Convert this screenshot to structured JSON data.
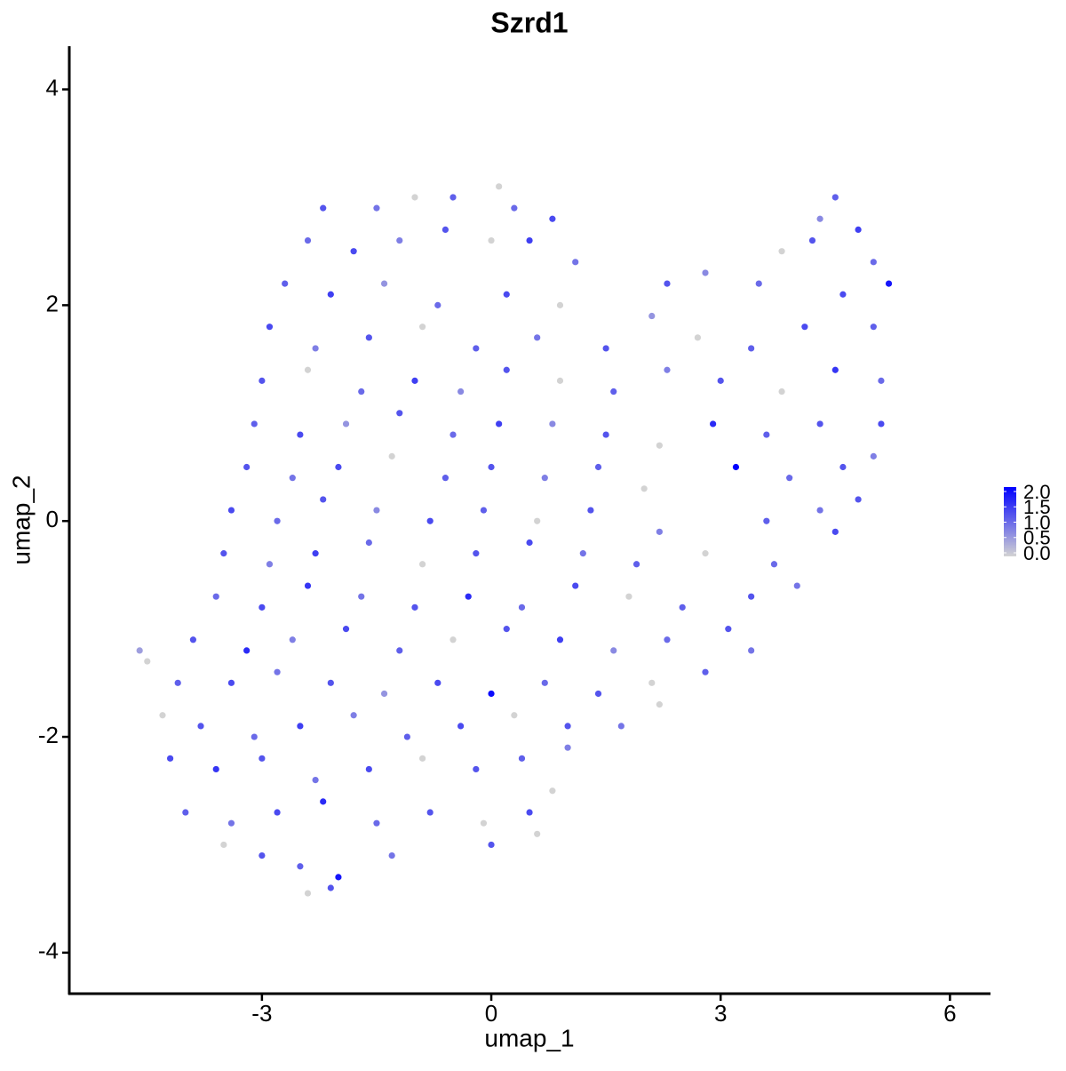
{
  "chart_data": {
    "type": "scatter",
    "title": "Szrd1",
    "x_label": "umap_1",
    "y_label": "umap_2",
    "xlim": [
      -5.52,
      6.53
    ],
    "ylim": [
      -4.38,
      4.4
    ],
    "xticks": [
      -3,
      0,
      3,
      6
    ],
    "yticks": [
      -4,
      -2,
      0,
      2,
      4
    ],
    "color_low": "#d3d3d3",
    "color_high": "#0000ff",
    "color_lim": [
      0,
      2
    ],
    "color_ticks": [
      {
        "value": 0,
        "label": "0.0"
      },
      0.5,
      {
        "value": 1,
        "label": "1.0"
      },
      1.5,
      {
        "value": 2,
        "label": "2.0"
      }
    ],
    "x": [
      -2.2,
      -1.5,
      -1.0,
      -0.5,
      0.1,
      0.3,
      0.8,
      4.5,
      4.8,
      4.3,
      -2.4,
      -1.8,
      -1.2,
      -0.6,
      0,
      0.5,
      1.1,
      3.8,
      4.2,
      5.0,
      -2.7,
      -2.1,
      -1.4,
      -0.7,
      0.2,
      0.9,
      2.3,
      2.8,
      3.5,
      4.6,
      5.2,
      -2.9,
      -2.3,
      -1.6,
      -0.9,
      -0.2,
      0.6,
      1.5,
      2.1,
      2.7,
      3.4,
      4.1,
      5.0,
      -3.0,
      -2.4,
      -1.7,
      -1.0,
      -0.4,
      0.2,
      0.9,
      1.6,
      2.3,
      3.0,
      3.8,
      4.5,
      5.1,
      -3.1,
      -2.5,
      -1.9,
      -1.2,
      -0.5,
      0.1,
      0.8,
      1.5,
      2.2,
      2.9,
      3.6,
      4.3,
      5.1,
      -3.2,
      -2.6,
      -2.0,
      -1.3,
      -0.6,
      0,
      0.7,
      1.4,
      2.0,
      3.2,
      3.9,
      4.6,
      5.0,
      -3.4,
      -2.8,
      -2.2,
      -1.5,
      -0.8,
      -0.1,
      0.6,
      1.3,
      2.2,
      3.6,
      4.3,
      4.8,
      -3.5,
      -2.9,
      -2.3,
      -1.6,
      -0.9,
      -0.2,
      0.5,
      1.2,
      1.9,
      2.8,
      3.7,
      4.5,
      -3.6,
      -3.0,
      -2.4,
      -1.7,
      -1.0,
      -0.3,
      0.4,
      1.1,
      1.8,
      2.5,
      3.4,
      4.0,
      -3.9,
      -3.2,
      -2.6,
      -1.9,
      -1.2,
      -0.5,
      0.2,
      0.9,
      1.6,
      2.3,
      3.1,
      3.4,
      -4.5,
      -4.1,
      -3.4,
      -2.8,
      -2.1,
      -1.4,
      -0.7,
      0,
      0.7,
      1.4,
      2.1,
      2.8,
      -4.3,
      -3.8,
      -3.1,
      -2.5,
      -1.8,
      -1.1,
      -0.4,
      0.3,
      1.0,
      1.7,
      2.2,
      -4.2,
      -3.6,
      -3.0,
      -2.3,
      -1.6,
      -0.9,
      -0.2,
      0.4,
      1.0,
      -4.0,
      -3.4,
      -2.8,
      -2.2,
      -1.5,
      -0.8,
      -0.1,
      0.5,
      0.8,
      -3.5,
      -3.0,
      -2.5,
      -2.0,
      -1.3,
      0,
      0.6,
      -2.4,
      -2.1,
      -4.6
    ],
    "y": [
      2.9,
      2.9,
      3.0,
      3.0,
      3.1,
      2.9,
      2.8,
      3.0,
      2.7,
      2.8,
      2.6,
      2.5,
      2.6,
      2.7,
      2.6,
      2.6,
      2.4,
      2.5,
      2.6,
      2.4,
      2.2,
      2.1,
      2.2,
      2.0,
      2.1,
      2.0,
      2.2,
      2.3,
      2.2,
      2.1,
      2.2,
      1.8,
      1.6,
      1.7,
      1.8,
      1.6,
      1.7,
      1.6,
      1.9,
      1.7,
      1.6,
      1.8,
      1.8,
      1.3,
      1.4,
      1.2,
      1.3,
      1.2,
      1.4,
      1.3,
      1.2,
      1.4,
      1.3,
      1.2,
      1.4,
      1.3,
      0.9,
      0.8,
      0.9,
      1.0,
      0.8,
      0.9,
      0.9,
      0.8,
      0.7,
      0.9,
      0.8,
      0.9,
      0.9,
      0.5,
      0.4,
      0.5,
      0.6,
      0.4,
      0.5,
      0.4,
      0.5,
      0.3,
      0.5,
      0.4,
      0.5,
      0.6,
      0.1,
      0,
      0.2,
      0.1,
      0,
      0.1,
      0,
      0.1,
      -0.1,
      0,
      0.1,
      0.2,
      -0.3,
      -0.4,
      -0.3,
      -0.2,
      -0.4,
      -0.3,
      -0.2,
      -0.3,
      -0.4,
      -0.3,
      -0.4,
      -0.1,
      -0.7,
      -0.8,
      -0.6,
      -0.7,
      -0.8,
      -0.7,
      -0.8,
      -0.6,
      -0.7,
      -0.8,
      -0.7,
      -0.6,
      -1.1,
      -1.2,
      -1.1,
      -1.0,
      -1.2,
      -1.1,
      -1.0,
      -1.1,
      -1.2,
      -1.1,
      -1.0,
      -1.2,
      -1.3,
      -1.5,
      -1.5,
      -1.4,
      -1.5,
      -1.6,
      -1.5,
      -1.6,
      -1.5,
      -1.6,
      -1.5,
      -1.4,
      -1.8,
      -1.9,
      -2.0,
      -1.9,
      -1.8,
      -2.0,
      -1.9,
      -1.8,
      -1.9,
      -1.9,
      -1.7,
      -2.2,
      -2.3,
      -2.2,
      -2.4,
      -2.3,
      -2.2,
      -2.3,
      -2.2,
      -2.1,
      -2.7,
      -2.8,
      -2.7,
      -2.6,
      -2.8,
      -2.7,
      -2.8,
      -2.7,
      -2.5,
      -3.0,
      -3.1,
      -3.2,
      -3.3,
      -3.1,
      -3.0,
      -2.9,
      -3.45,
      -3.4,
      -1.2
    ],
    "expression": [
      1.2,
      0.9,
      0,
      1.1,
      0,
      1.0,
      1.3,
      1.1,
      1.4,
      0.7,
      1.0,
      1.3,
      0.8,
      1.2,
      0,
      1.4,
      0.9,
      0,
      1.2,
      1.0,
      1.1,
      1.4,
      0.6,
      1.0,
      1.3,
      0,
      1.2,
      0.7,
      1.0,
      1.3,
      1.8,
      1.3,
      0.8,
      1.2,
      0,
      1.1,
      0.9,
      1.2,
      0.6,
      0,
      1.1,
      1.3,
      1.1,
      1.2,
      0,
      1.0,
      1.4,
      0.7,
      1.2,
      0,
      1.1,
      0.8,
      1.2,
      0,
      1.5,
      1.0,
      1.1,
      1.3,
      0.6,
      1.2,
      1.0,
      1.4,
      0.7,
      1.2,
      0,
      1.6,
      1.1,
      1.2,
      1.3,
      1.2,
      0.9,
      1.3,
      0,
      1.1,
      1.2,
      0.8,
      1.1,
      0,
      2.0,
      1.0,
      1.2,
      0.8,
      1.3,
      1.0,
      1.2,
      0.7,
      1.3,
      1.1,
      0,
      1.2,
      0.8,
      1.1,
      0.9,
      1.2,
      1.2,
      0.8,
      1.4,
      1.0,
      0,
      1.2,
      1.3,
      0.9,
      1.1,
      0,
      1.0,
      1.3,
      1.0,
      1.3,
      1.5,
      0.9,
      1.2,
      1.6,
      1.0,
      1.3,
      0,
      1.1,
      1.2,
      0.9,
      1.2,
      1.6,
      0.8,
      1.3,
      1.1,
      0,
      1.2,
      1.4,
      0.7,
      1.0,
      1.2,
      0.9,
      0,
      1.1,
      1.3,
      0.9,
      1.2,
      0.6,
      1.3,
      1.9,
      1.0,
      1.2,
      0,
      1.1,
      0,
      1.2,
      1.0,
      1.4,
      0.8,
      1.1,
      1.3,
      0,
      1.2,
      0.9,
      0,
      1.3,
      1.5,
      1.2,
      0.9,
      1.3,
      0,
      1.2,
      1.1,
      0.8,
      1.1,
      0.9,
      1.3,
      1.6,
      1.0,
      1.2,
      0,
      1.3,
      0,
      0,
      1.2,
      1.1,
      1.8,
      0.9,
      1.2,
      0,
      0,
      1.2,
      0.5
    ]
  }
}
